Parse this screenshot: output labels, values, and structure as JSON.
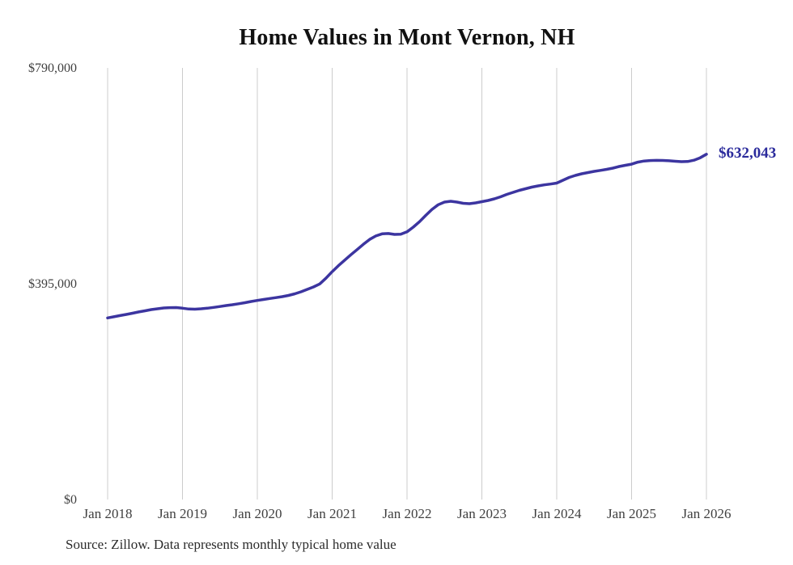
{
  "source_note": "Source: Zillow. Data represents monthly typical home value",
  "chart_data": {
    "type": "line",
    "title": "Home Values in Mont Vernon, NH",
    "xlabel": "",
    "ylabel": "",
    "x_frequency": "monthly",
    "x_range": [
      "Jan 2018",
      "Jan 2026"
    ],
    "ylim": [
      0,
      790000
    ],
    "grid": "vertical-only",
    "legend": "none",
    "end_label": "$632,043",
    "latest_value": 632043,
    "y_ticks": [
      {
        "label": "$0",
        "value": 0
      },
      {
        "label": "$395,000",
        "value": 395000
      },
      {
        "label": "$790,000",
        "value": 790000
      }
    ],
    "x_ticks": [
      {
        "label": "Jan 2018",
        "month_index": 0
      },
      {
        "label": "Jan 2019",
        "month_index": 12
      },
      {
        "label": "Jan 2020",
        "month_index": 24
      },
      {
        "label": "Jan 2021",
        "month_index": 36
      },
      {
        "label": "Jan 2022",
        "month_index": 48
      },
      {
        "label": "Jan 2023",
        "month_index": 60
      },
      {
        "label": "Jan 2024",
        "month_index": 72
      },
      {
        "label": "Jan 2025",
        "month_index": 84
      },
      {
        "label": "Jan 2026",
        "month_index": 96
      }
    ],
    "series": [
      {
        "name": "Monthly typical home value",
        "start": "Jan 2018",
        "values": [
          332400,
          334500,
          336700,
          338800,
          341000,
          343300,
          345500,
          347700,
          349200,
          350600,
          351200,
          351400,
          350200,
          348700,
          348400,
          349200,
          350200,
          351700,
          353300,
          355100,
          356600,
          358300,
          360300,
          362500,
          364400,
          366200,
          368000,
          369600,
          371400,
          373600,
          376500,
          380200,
          384700,
          389100,
          394600,
          405000,
          417000,
          428000,
          438000,
          448000,
          457500,
          467000,
          476000,
          482500,
          486300,
          486800,
          485200,
          485500,
          490000,
          498500,
          508500,
          520000,
          531000,
          539500,
          544400,
          545900,
          544400,
          542200,
          541500,
          543000,
          545200,
          547400,
          550300,
          554000,
          558500,
          562200,
          565900,
          568800,
          571800,
          574000,
          575900,
          577400,
          579200,
          584400,
          589600,
          593300,
          596200,
          598400,
          600700,
          602400,
          604400,
          606600,
          609500,
          611800,
          613800,
          617500,
          619500,
          620400,
          620800,
          620600,
          620000,
          619200,
          618400,
          618700,
          621000,
          625500,
          632043
        ]
      }
    ],
    "colors": {
      "line": "#3c35a0",
      "end_label": "#2b2b9c",
      "gridline": "#cccccc",
      "axis_text": "#3f3f3f",
      "title_text": "#111111",
      "source_text": "#2b2b2b"
    }
  }
}
